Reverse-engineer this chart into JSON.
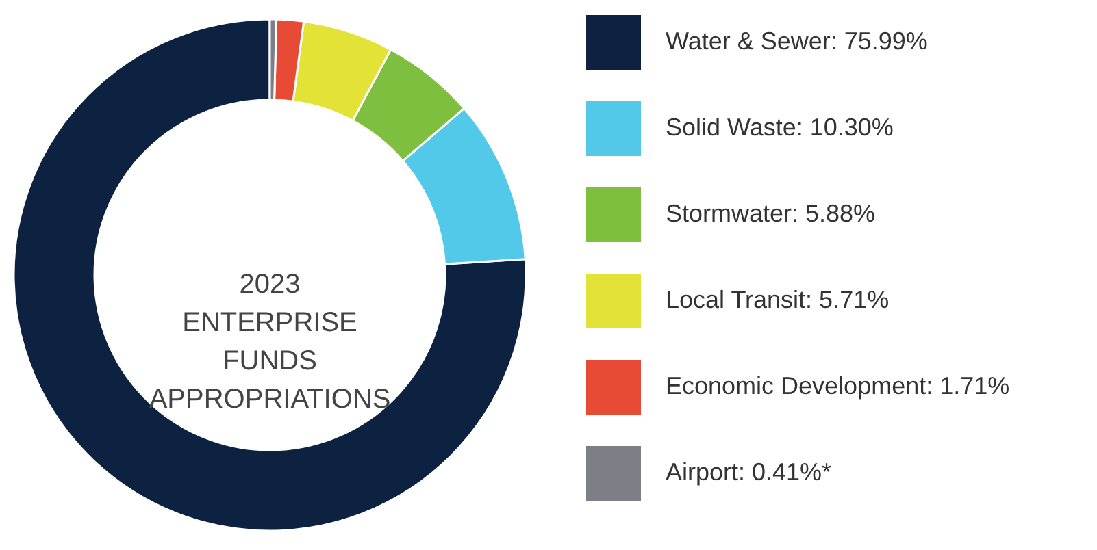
{
  "chart_data": {
    "type": "donut",
    "title": "2023 ENTERPRISE FUNDS APPROPRIATIONS",
    "categories": [
      "Water & Sewer: 75.99%",
      "Solid Waste: 10.30%",
      "Stormwater: 5.88%",
      "Local Transit: 5.71%",
      "Economic Development: 1.71%",
      "Airport: 0.41%*"
    ],
    "values": [
      75.99,
      10.3,
      5.88,
      5.71,
      1.71,
      0.41
    ],
    "colors": [
      "#0d2240",
      "#52c9e8",
      "#7fbf3f",
      "#e2e237",
      "#e84b35",
      "#7d7f87"
    ],
    "legend": "right"
  }
}
